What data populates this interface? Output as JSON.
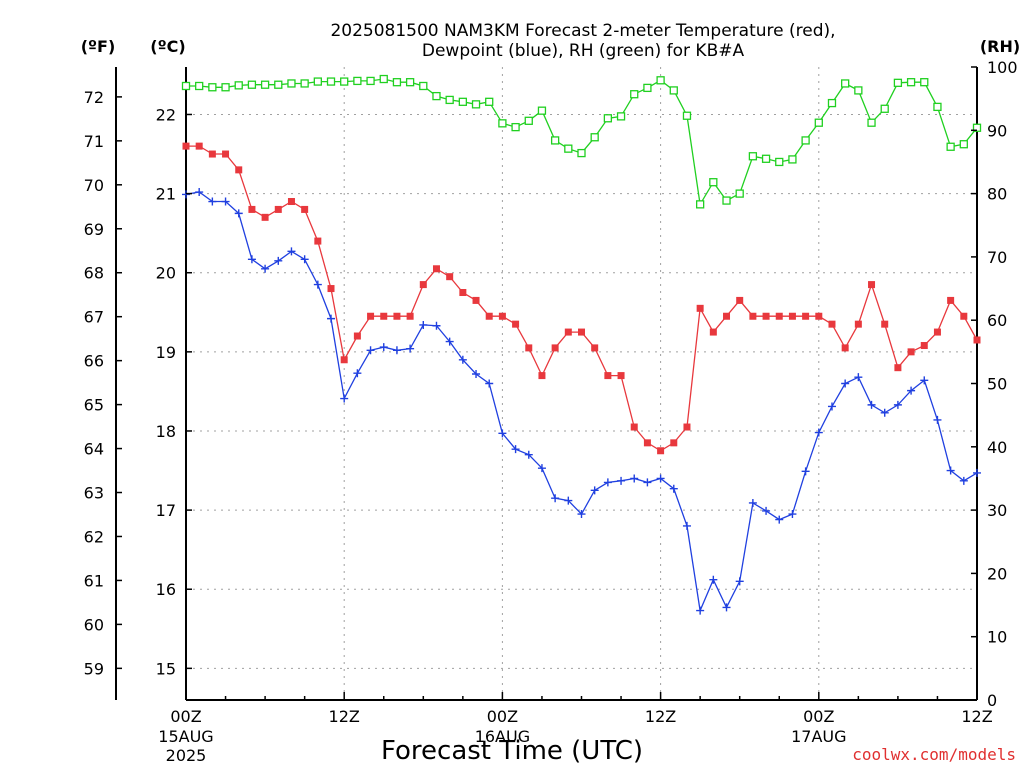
{
  "chart_data": {
    "type": "line",
    "title_lines": [
      "2025081500 NAM3KM Forecast 2-meter Temperature (red),",
      "Dewpoint (blue), RH (green) for KB#A"
    ],
    "xlabel": "Forecast Time (UTC)",
    "credit": "coolwx.com/models",
    "grid": true,
    "x_range_hours": [
      0,
      60
    ],
    "x_ticks": [
      {
        "hour": 0,
        "label": "00Z",
        "date": "15AUG",
        "year": "2025"
      },
      {
        "hour": 12,
        "label": "12Z",
        "date": "",
        "year": ""
      },
      {
        "hour": 24,
        "label": "00Z",
        "date": "16AUG",
        "year": ""
      },
      {
        "hour": 36,
        "label": "12Z",
        "date": "",
        "year": ""
      },
      {
        "hour": 48,
        "label": "00Z",
        "date": "17AUG",
        "year": ""
      },
      {
        "hour": 60,
        "label": "12Z",
        "date": "",
        "year": ""
      }
    ],
    "axes": {
      "celsius": {
        "unit_label": "(ºC)",
        "range": [
          14.6,
          22.6
        ],
        "ticks": [
          15,
          16,
          17,
          18,
          19,
          20,
          21,
          22
        ]
      },
      "fahrenheit": {
        "unit_label": "(ºF)",
        "range": [
          58.28,
          72.68
        ],
        "ticks": [
          59,
          60,
          61,
          62,
          63,
          64,
          65,
          66,
          67,
          68,
          69,
          70,
          71,
          72
        ]
      },
      "rh": {
        "unit_label": "(RH)",
        "range": [
          0,
          100
        ],
        "ticks": [
          0,
          10,
          20,
          30,
          40,
          50,
          60,
          70,
          80,
          90,
          100
        ]
      }
    },
    "series": [
      {
        "key": "temperature",
        "axis": "celsius",
        "color": "#e8383d",
        "marker": "filled-square",
        "x": [
          0,
          1,
          2,
          3,
          4,
          5,
          6,
          7,
          8,
          9,
          10,
          11,
          12,
          13,
          14,
          15,
          16,
          17,
          18,
          19,
          20,
          21,
          22,
          23,
          24,
          25,
          26,
          27,
          28,
          29,
          30,
          31,
          32,
          33,
          34,
          35,
          36,
          37,
          38,
          39,
          40,
          41,
          42,
          43,
          44,
          45,
          46,
          47,
          48,
          49,
          50,
          51,
          52,
          53,
          54,
          55,
          56,
          57,
          58,
          59,
          60
        ],
        "values": [
          21.6,
          21.6,
          21.5,
          21.5,
          21.3,
          20.8,
          20.7,
          20.8,
          20.9,
          20.8,
          20.4,
          19.8,
          18.9,
          19.2,
          19.45,
          19.45,
          19.45,
          19.45,
          19.85,
          20.05,
          19.95,
          19.75,
          19.65,
          19.45,
          19.45,
          19.35,
          19.05,
          18.7,
          19.05,
          19.25,
          19.25,
          19.05,
          18.7,
          18.7,
          18.05,
          17.85,
          17.75,
          17.85,
          18.05,
          19.55,
          19.25,
          19.45,
          19.65,
          19.45,
          19.45,
          19.45,
          19.45,
          19.45,
          19.45,
          19.35,
          19.05,
          19.35,
          19.85,
          19.35,
          18.8,
          19.0,
          19.08,
          19.25,
          19.65,
          19.45,
          19.15
        ]
      },
      {
        "key": "dewpoint",
        "axis": "celsius",
        "color": "#2040e0",
        "marker": "plus",
        "x": [
          0,
          1,
          2,
          3,
          4,
          5,
          6,
          7,
          8,
          9,
          10,
          11,
          12,
          13,
          14,
          15,
          16,
          17,
          18,
          19,
          20,
          21,
          22,
          23,
          24,
          25,
          26,
          27,
          28,
          29,
          30,
          31,
          32,
          33,
          34,
          35,
          36,
          37,
          38,
          39,
          40,
          41,
          42,
          43,
          44,
          45,
          46,
          47,
          48,
          49,
          50,
          51,
          52,
          53,
          54,
          55,
          56,
          57,
          58,
          59,
          60
        ],
        "values": [
          20.99,
          21.02,
          20.9,
          20.9,
          20.75,
          20.17,
          20.05,
          20.15,
          20.27,
          20.17,
          19.85,
          19.42,
          18.41,
          18.73,
          19.02,
          19.06,
          19.02,
          19.04,
          19.34,
          19.33,
          19.13,
          18.9,
          18.72,
          18.6,
          17.97,
          17.77,
          17.7,
          17.53,
          17.15,
          17.12,
          16.95,
          17.25,
          17.35,
          17.37,
          17.4,
          17.35,
          17.4,
          17.27,
          16.8,
          15.73,
          16.12,
          15.77,
          16.1,
          17.09,
          16.99,
          16.88,
          16.95,
          17.49,
          17.98,
          18.31,
          18.6,
          18.68,
          18.33,
          18.23,
          18.33,
          18.51,
          18.64,
          18.14,
          17.5,
          17.37,
          17.47
        ]
      },
      {
        "key": "rh",
        "axis": "rh",
        "color": "#20d020",
        "marker": "open-square",
        "x": [
          0,
          1,
          2,
          3,
          4,
          5,
          6,
          7,
          8,
          9,
          10,
          11,
          12,
          13,
          14,
          15,
          16,
          17,
          18,
          19,
          20,
          21,
          22,
          23,
          24,
          25,
          26,
          27,
          28,
          29,
          30,
          31,
          32,
          33,
          34,
          35,
          36,
          37,
          38,
          39,
          40,
          41,
          42,
          43,
          44,
          45,
          46,
          47,
          48,
          49,
          50,
          51,
          52,
          53,
          54,
          55,
          56,
          57,
          58,
          59,
          60
        ],
        "values": [
          97,
          97,
          96.8,
          96.8,
          97.1,
          97.2,
          97.2,
          97.2,
          97.4,
          97.4,
          97.7,
          97.7,
          97.7,
          97.8,
          97.8,
          98.1,
          97.6,
          97.6,
          97.0,
          95.4,
          94.8,
          94.5,
          94.1,
          94.5,
          91.1,
          90.5,
          91.5,
          93.1,
          88.4,
          87.1,
          86.4,
          88.9,
          91.9,
          92.2,
          95.7,
          96.7,
          97.9,
          96.3,
          92.3,
          78.3,
          81.8,
          78.9,
          80.0,
          85.9,
          85.5,
          85.0,
          85.4,
          88.4,
          91.2,
          94.3,
          97.4,
          96.3,
          91.2,
          93.4,
          97.5,
          97.6,
          97.6,
          93.7,
          87.4,
          87.8,
          90.4
        ]
      }
    ]
  }
}
